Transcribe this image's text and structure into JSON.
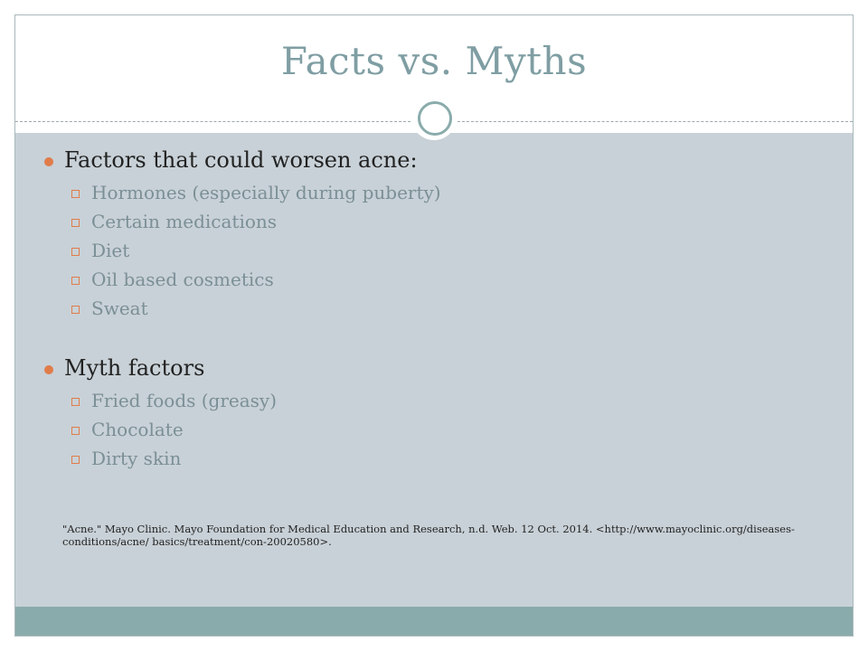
{
  "slide": {
    "title": "Facts vs. Myths",
    "sections": [
      {
        "heading": "Factors that could worsen acne:",
        "items": [
          "Hormones (especially during puberty)",
          "Certain medications",
          "Diet",
          "Oil based cosmetics",
          "Sweat"
        ]
      },
      {
        "heading": "Myth factors",
        "items": [
          "Fried foods (greasy)",
          "Chocolate",
          "Dirty skin"
        ]
      }
    ],
    "citation_line1": "\"Acne.\" Mayo Clinic. Mayo Foundation for Medical Education and Research, n.d. Web. 12 Oct. 2014. <http://www.mayoclinic.org/diseases-",
    "citation_line2": "conditions/acne/ basics/treatment/con-20020580>."
  },
  "colors": {
    "title": "#7f9ea3",
    "content_background": "#c8d1d7",
    "footer_band": "#8aabab",
    "bullet_accent": "#e07c4a",
    "sub_item_text": "#7b8f96"
  }
}
